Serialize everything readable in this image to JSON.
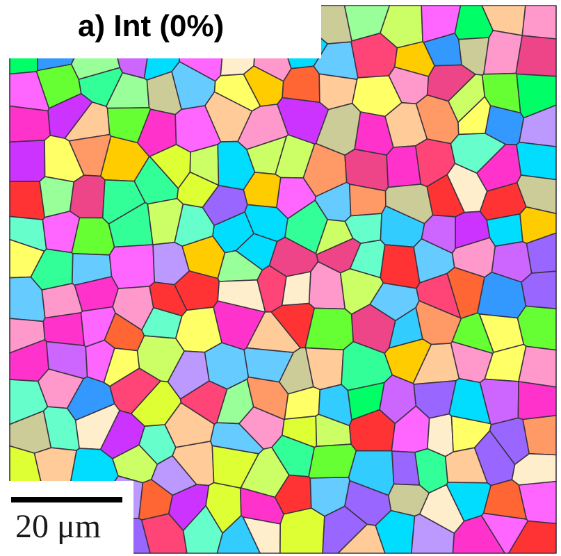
{
  "figure": {
    "panel_label": "a) Int (0%)",
    "scale_bar_label": "20 μm"
  },
  "palette": [
    "#ff33cc",
    "#cc33ff",
    "#66ff33",
    "#33ccff",
    "#ffcc00",
    "#ff6633",
    "#ff3333",
    "#33ff99",
    "#9966ff",
    "#ffff66",
    "#66ccff",
    "#ff99cc",
    "#ccff66",
    "#3399ff",
    "#ff9966",
    "#cc66ff",
    "#99ff99",
    "#ffcc99",
    "#ff66ff",
    "#00ff66",
    "#66ffcc",
    "#ffeecc",
    "#cccc99",
    "#ee4488",
    "#ddff33",
    "#bb99ff",
    "#00ddff",
    "#ff4477"
  ]
}
